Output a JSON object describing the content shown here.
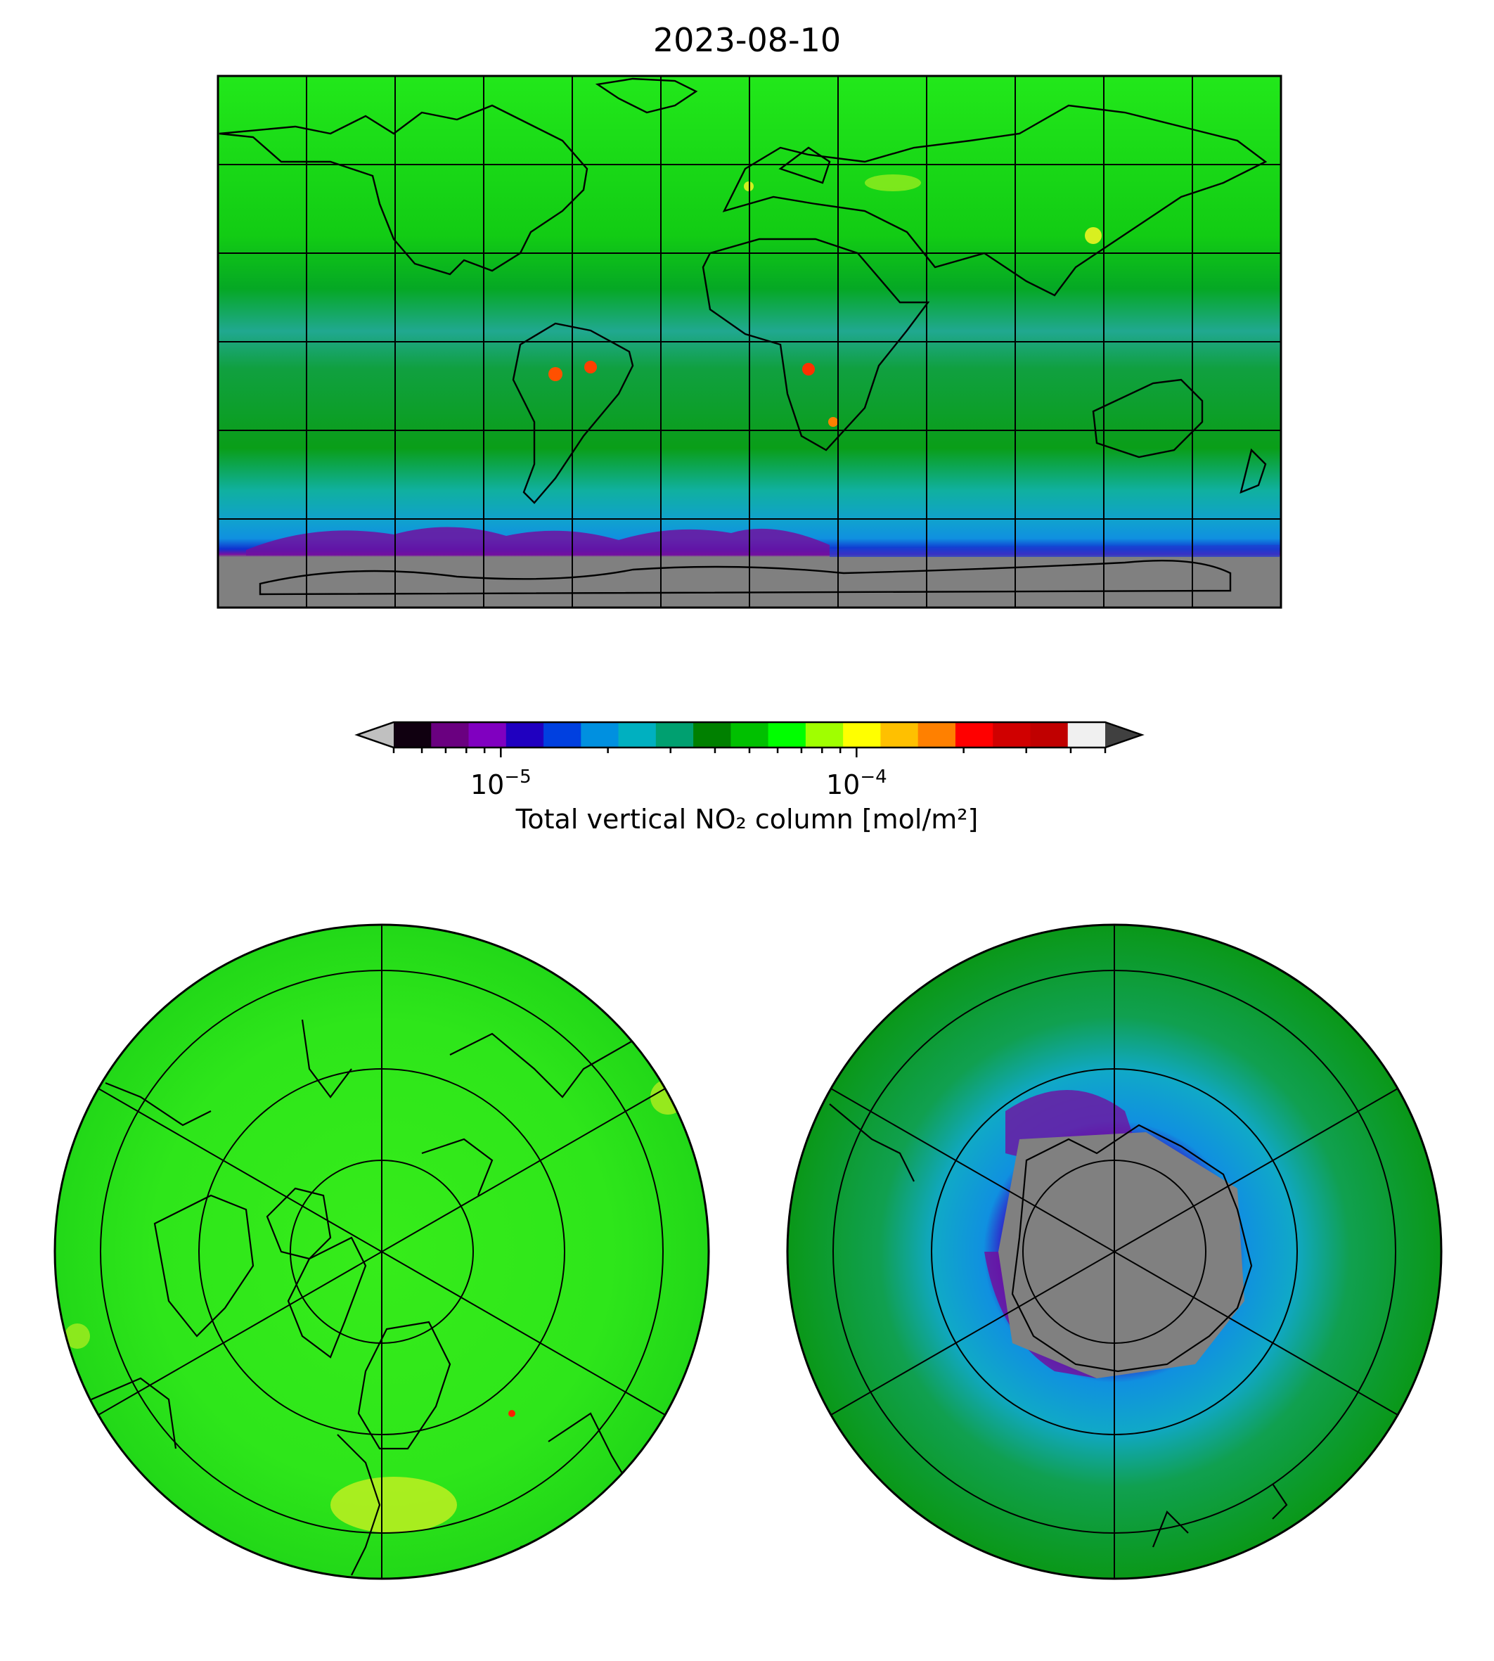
{
  "figure": {
    "title": "2023-08-10"
  },
  "colorbar": {
    "label": "Total vertical NO₂ column [mol/m²]",
    "scale": "log",
    "range": [
      5e-06,
      0.0005
    ],
    "extend": "both",
    "ticks": [
      {
        "value": 1e-05,
        "base": "10",
        "exponent": "−5"
      },
      {
        "value": 0.0001,
        "base": "10",
        "exponent": "−4"
      }
    ],
    "colors": [
      "#100010",
      "#6a0080",
      "#8000c0",
      "#2000c0",
      "#0040e0",
      "#0090e0",
      "#00b0c0",
      "#00a070",
      "#008000",
      "#00c000",
      "#00ff00",
      "#a0ff00",
      "#ffff00",
      "#ffc000",
      "#ff8000",
      "#ff0000",
      "#d00000",
      "#c00000",
      "#f0f0f0"
    ],
    "under_color": "#c0c0c0",
    "over_color": "#404040"
  },
  "maps": [
    {
      "projection": "plate-carree",
      "name": "global",
      "gridlines": true,
      "coastlines": true,
      "missing_color": "#808080"
    },
    {
      "projection": "north-polar-stereographic",
      "name": "arctic",
      "gridlines": true,
      "coastlines": true
    },
    {
      "projection": "south-polar-stereographic",
      "name": "antarctic",
      "gridlines": true,
      "coastlines": true,
      "missing_color": "#808080"
    }
  ]
}
